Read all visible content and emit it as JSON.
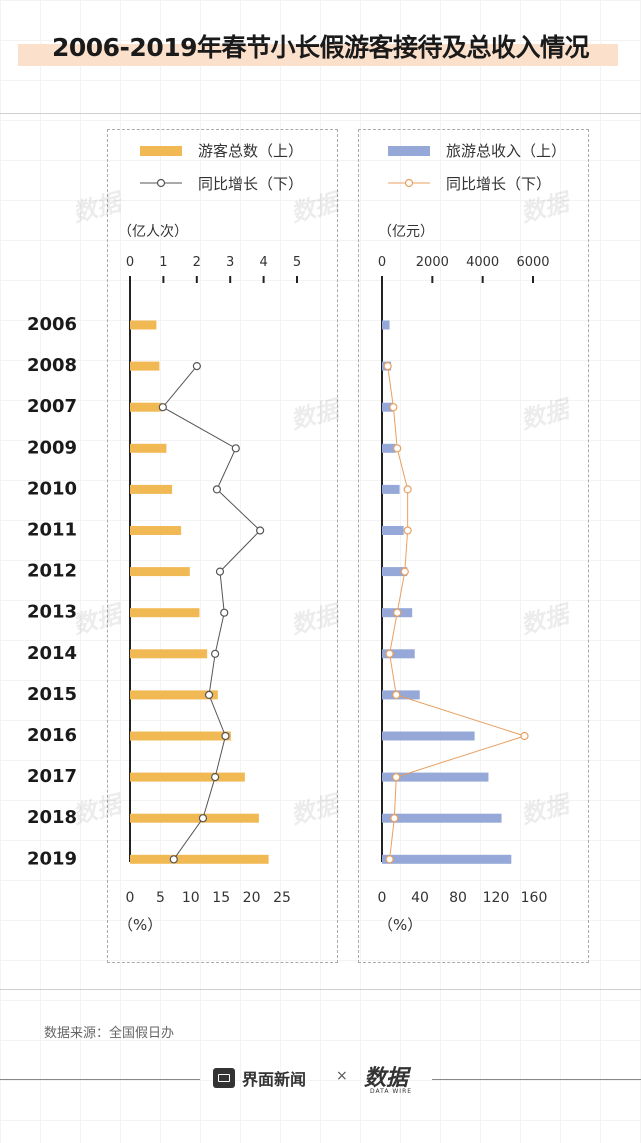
{
  "title": "2006-2019年春节小长假游客接待及总收入情况",
  "source": "数据来源：全国假日办",
  "footer": {
    "brand": "界面新闻",
    "times": "×",
    "logo": "数据",
    "logo_sub": "DATA WIRE"
  },
  "watermark": "数据",
  "colors": {
    "orange": "#f0b954",
    "blue": "#95a8d7",
    "line_left": "#555555",
    "line_right": "#e8a060"
  },
  "chart_data": [
    {
      "type": "bar",
      "legend": [
        "游客总数（上）",
        "同比增长（下）"
      ],
      "unit_top": "（亿人次）",
      "unit_bottom": "（%）",
      "top_ticks": [
        "0",
        "1",
        "2",
        "3",
        "4",
        "5"
      ],
      "top_range": [
        0,
        5
      ],
      "bottom_ticks": [
        "0",
        "5",
        "10",
        "15",
        "20",
        "25"
      ],
      "bottom_range": [
        0,
        25
      ],
      "categories": [
        "2006",
        "2008",
        "2007",
        "2009",
        "2010",
        "2011",
        "2012",
        "2013",
        "2014",
        "2015",
        "2016",
        "2017",
        "2018",
        "2019"
      ],
      "series": [
        {
          "name": "游客总数（上）",
          "values": [
            0.79,
            0.88,
            0.95,
            1.09,
            1.26,
            1.53,
            1.79,
            2.08,
            2.31,
            2.63,
            3.02,
            3.44,
            3.86,
            4.15
          ]
        },
        {
          "name": "同比增长（下）",
          "values": [
            null,
            11.0,
            5.4,
            17.4,
            14.3,
            21.4,
            14.8,
            15.5,
            14.0,
            13.0,
            15.7,
            14.0,
            12.0,
            7.2
          ]
        }
      ]
    },
    {
      "type": "bar",
      "legend": [
        "旅游总收入（上）",
        "同比增长（下）"
      ],
      "unit_top": "（亿元）",
      "unit_bottom": "（%）",
      "top_ticks": [
        "0",
        "2000",
        "4000",
        "6000"
      ],
      "top_range": [
        0,
        6000
      ],
      "bottom_ticks": [
        "0",
        "40",
        "80",
        "120",
        "160"
      ],
      "bottom_range": [
        0,
        160
      ],
      "categories": [
        "2006",
        "2008",
        "2007",
        "2009",
        "2010",
        "2011",
        "2012",
        "2013",
        "2014",
        "2015",
        "2016",
        "2017",
        "2018",
        "2019"
      ],
      "series": [
        {
          "name": "旅游总收入（上）",
          "values": [
            300,
            360,
            440,
            540,
            700,
            860,
            1000,
            1200,
            1300,
            1500,
            3680,
            4230,
            4750,
            5139
          ]
        },
        {
          "name": "同比增长（下）",
          "values": [
            null,
            6,
            12,
            16,
            27,
            27,
            24,
            16,
            8,
            15,
            150,
            15,
            13,
            8
          ]
        }
      ]
    }
  ]
}
